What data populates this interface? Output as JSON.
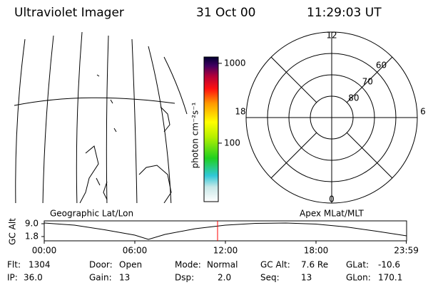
{
  "header": {
    "title": "Ultraviolet Imager",
    "date": "31 Oct 00",
    "time": "11:29:03 UT"
  },
  "map": {
    "label": "Geographic Lat/Lon"
  },
  "colorbar": {
    "label": "photon cm⁻²s⁻¹",
    "log": true,
    "clim": [
      18.5,
      1200
    ],
    "ticks": [
      1000,
      100
    ]
  },
  "polar": {
    "label": "Apex MLat/MLT",
    "lat_lim": [
      90,
      50
    ],
    "lat_rings": [
      80,
      70,
      60
    ],
    "mlt_labels": [
      12,
      18,
      6,
      0
    ]
  },
  "gc_alt": {
    "ylabel": "GC Alt",
    "yticks": [
      {
        "value": 9.0,
        "label": "9.0"
      },
      1.8
    ],
    "ylim": [
      -0.6,
      10.6
    ],
    "xlim": [
      0,
      24
    ],
    "xticks": [
      {
        "value": 0,
        "label": "00:00"
      },
      {
        "value": 6,
        "label": "06:00"
      },
      {
        "value": 12,
        "label": "12:00"
      },
      {
        "value": 18,
        "label": "18:00"
      },
      {
        "value": 23.98,
        "label": "23:59"
      }
    ],
    "x": [
      0,
      2,
      4,
      6,
      6.9,
      8,
      10,
      12,
      14,
      16,
      18,
      20,
      22,
      24
    ],
    "values": [
      9.4,
      8.2,
      5.6,
      2.6,
      0.2,
      3.0,
      6.2,
      8.2,
      9.2,
      9.4,
      8.8,
      7.2,
      4.8,
      2.2
    ],
    "current_time": 11.48,
    "marker_color": "#ff0000"
  },
  "footer": {
    "rows": [
      [
        {
          "label": "Flt:",
          "value": "1304"
        },
        {
          "label": "Door:",
          "value": "Open"
        },
        {
          "label": "Mode:",
          "value": "Normal"
        },
        {
          "label": "GC Alt:",
          "value": "7.6 Re"
        },
        {
          "label": "GLat:",
          "value": "-10.6"
        }
      ],
      [
        {
          "label": "IP:",
          "value": "36.0"
        },
        {
          "label": "Gain:",
          "value": "13"
        },
        {
          "label": "Dsp:",
          "value": "2.0"
        },
        {
          "label": "Seq:",
          "value": "13"
        },
        {
          "label": "GLon:",
          "value": "170.1"
        }
      ]
    ]
  }
}
